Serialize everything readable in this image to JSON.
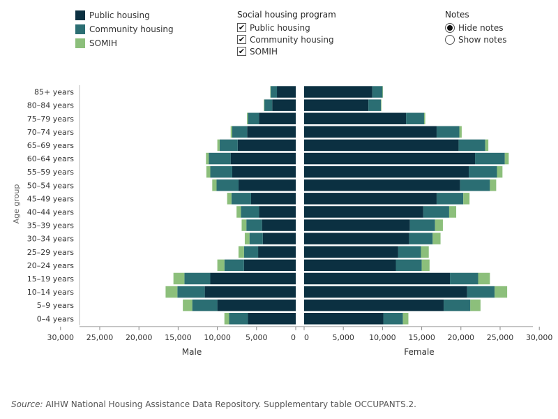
{
  "legend": {
    "items": [
      {
        "label": "Public housing",
        "color": "#0b3041"
      },
      {
        "label": "Community housing",
        "color": "#2b6e73"
      },
      {
        "label": "SOMIH",
        "color": "#8cbf7b"
      }
    ]
  },
  "filter": {
    "title": "Social housing program",
    "options": [
      {
        "label": "Public housing",
        "checked": true
      },
      {
        "label": "Community housing",
        "checked": true
      },
      {
        "label": "SOMIH",
        "checked": true
      }
    ]
  },
  "notes": {
    "title": "Notes",
    "options": [
      {
        "label": "Hide notes",
        "selected": true
      },
      {
        "label": "Show notes",
        "selected": false
      }
    ]
  },
  "source": {
    "prefix": "Source:",
    "text": " AIHW National Housing Assistance Data Repository. Supplementary table OCCUPANTS.2."
  },
  "chart_data": {
    "type": "bar",
    "orientation": "horizontal-population-pyramid",
    "ylabel": "Age group",
    "male_label": "Male",
    "female_label": "Female",
    "categories": [
      "85+ years",
      "80–84 years",
      "75–79 years",
      "70–74 years",
      "65–69 years",
      "60–64 years",
      "55–59 years",
      "50–54 years",
      "45–49 years",
      "40–44 years",
      "35–39 years",
      "30–34 years",
      "25–29 years",
      "20–24 years",
      "15–19 years",
      "10–14 years",
      "5–9 years",
      "0–4 years"
    ],
    "male_ticks": [
      30000,
      25000,
      20000,
      15000,
      10000,
      5000,
      0
    ],
    "male_tick_labels": [
      "30,000",
      "25,000",
      "20,000",
      "15,000",
      "10,000",
      "5,000",
      "0"
    ],
    "female_ticks": [
      0,
      5000,
      10000,
      15000,
      20000,
      25000,
      30000
    ],
    "female_tick_labels": [
      "0",
      "5,000",
      "10,000",
      "15,000",
      "20,000",
      "25,000",
      "30,000"
    ],
    "xlim_male": [
      0,
      35000
    ],
    "xlim_female": [
      0,
      35000
    ],
    "series": [
      {
        "name": "Public housing",
        "color": "#0b3041",
        "male": [
          2400,
          3000,
          4700,
          6200,
          7400,
          8300,
          8100,
          7300,
          5700,
          4700,
          4300,
          4200,
          4800,
          6600,
          10900,
          11600,
          10000,
          6100
        ],
        "female": [
          8700,
          8200,
          13000,
          16900,
          19700,
          21800,
          21000,
          19900,
          16900,
          15200,
          13500,
          13400,
          12000,
          11700,
          18600,
          20800,
          17800,
          10100
        ]
      },
      {
        "name": "Community housing",
        "color": "#2b6e73",
        "male": [
          800,
          1000,
          1400,
          1900,
          2300,
          2800,
          2800,
          2800,
          2500,
          2300,
          2000,
          1700,
          1800,
          2500,
          3300,
          3500,
          3200,
          2400
        ],
        "female": [
          1300,
          1600,
          2300,
          2900,
          3400,
          3800,
          3600,
          3800,
          3400,
          3300,
          3200,
          3000,
          2900,
          3300,
          3600,
          3500,
          3400,
          2500
        ]
      },
      {
        "name": "SOMIH",
        "color": "#8cbf7b",
        "male": [
          50,
          70,
          120,
          200,
          300,
          350,
          500,
          550,
          550,
          550,
          600,
          600,
          700,
          900,
          1400,
          1500,
          1200,
          600
        ],
        "female": [
          50,
          70,
          150,
          300,
          400,
          500,
          700,
          800,
          800,
          900,
          1000,
          1000,
          1000,
          1000,
          1500,
          1600,
          1300,
          700
        ]
      }
    ],
    "grid": false,
    "legend_position": "top-left"
  }
}
